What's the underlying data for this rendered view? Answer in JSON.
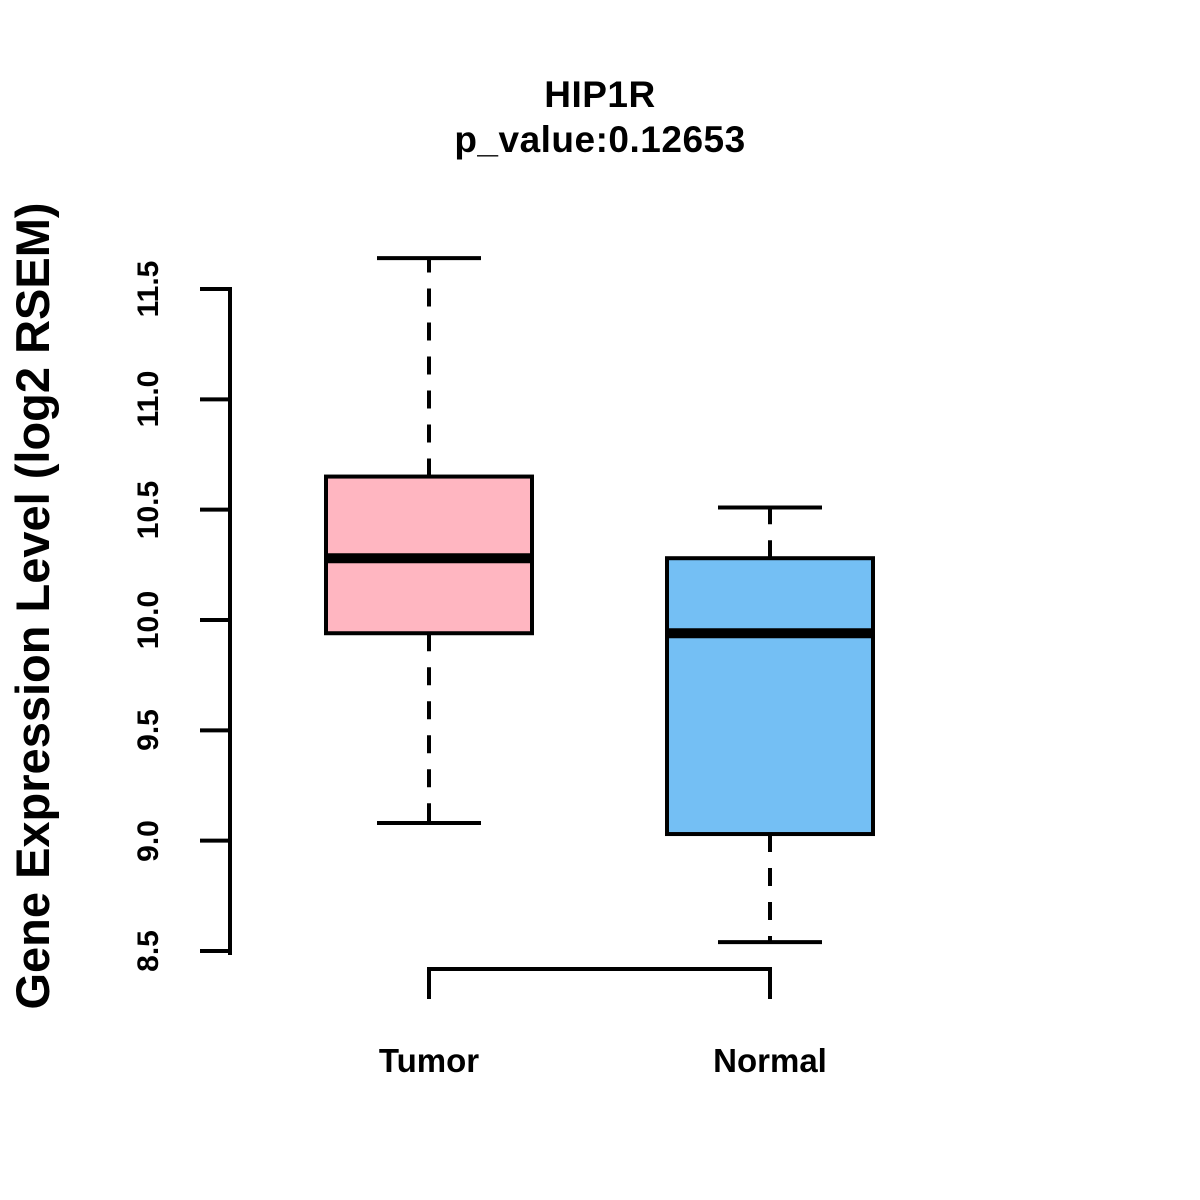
{
  "title": "HIP1R",
  "subtitle": "p_value:0.12653",
  "colors": {
    "tumor_fill": "#FFB6C1",
    "normal_fill": "#74BFF4",
    "stroke": "#000000",
    "background": "#FFFFFF"
  },
  "chart_data": {
    "type": "boxplot",
    "title": "HIP1R",
    "subtitle": "p_value:0.12653",
    "ylabel": "Gene Expression Level (log2 RSEM)",
    "xlabel": "",
    "categories": [
      "Tumor",
      "Normal"
    ],
    "series": [
      {
        "name": "Tumor",
        "color": "#FFB6C1",
        "whisker_low": 9.08,
        "q1": 9.94,
        "median": 10.28,
        "q3": 10.65,
        "whisker_high": 11.64
      },
      {
        "name": "Normal",
        "color": "#74BFF4",
        "whisker_low": 8.54,
        "q1": 9.03,
        "median": 9.94,
        "q3": 10.28,
        "whisker_high": 10.51
      }
    ],
    "y_axis": {
      "ticks": [
        8.5,
        9.0,
        9.5,
        10.0,
        10.5,
        11.0,
        11.5
      ],
      "tick_labels": [
        "8.5",
        "9.0",
        "9.5",
        "10.0",
        "10.5",
        "11.0",
        "11.5"
      ],
      "range": [
        8.4,
        11.75
      ]
    },
    "grid": false,
    "legend_position": "none"
  }
}
